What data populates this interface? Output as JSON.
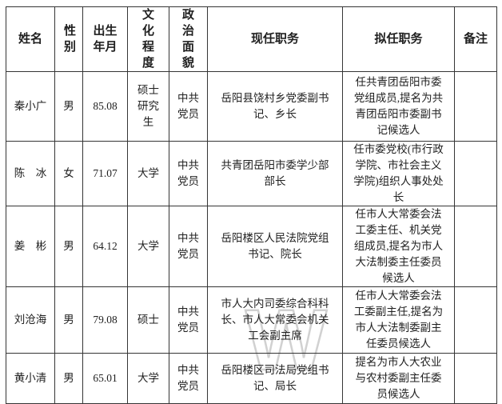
{
  "page": {
    "background": "#ffffff",
    "text_color": "#1f1f1f",
    "grid_color": "#353535",
    "watermark": {
      "glyph": "W",
      "color": "#c9c9c9"
    }
  },
  "table": {
    "headers": [
      {
        "key": "name",
        "label": "姓名"
      },
      {
        "key": "gender",
        "label": "性别"
      },
      {
        "key": "birth",
        "label": "出生年月"
      },
      {
        "key": "education",
        "label": "文化程度"
      },
      {
        "key": "political",
        "label": "政治面貌"
      },
      {
        "key": "current",
        "label": "现任职务"
      },
      {
        "key": "proposed",
        "label": "拟任职务"
      },
      {
        "key": "remarks",
        "label": "备注"
      }
    ],
    "rows": [
      {
        "name": "秦小广",
        "gender": "男",
        "birth": "85.08",
        "education": "硕士研究生",
        "political": "中共党员",
        "current": "岳阳县饶村乡党委副书记、乡长",
        "proposed": "任共青团岳阳市委党组成员,提名为共青团岳阳市委副书记候选人",
        "remarks": ""
      },
      {
        "name": "陈　冰",
        "gender": "女",
        "birth": "71.07",
        "education": "大学",
        "political": "中共党员",
        "current": "共青团岳阳市委学少部部长",
        "proposed": "任市委党校(市行政学院、市社会主义学院)组织人事处处长",
        "remarks": ""
      },
      {
        "name": "姜　彬",
        "gender": "男",
        "birth": "64.12",
        "education": "大学",
        "political": "中共党员",
        "current": "岳阳楼区人民法院党组书记、院长",
        "proposed": "任市人大常委会法工委主任、机关党组成员,提名为市人大法制委主任委员候选人",
        "remarks": ""
      },
      {
        "name": "刘沧海",
        "gender": "男",
        "birth": "79.08",
        "education": "硕士",
        "political": "中共党员",
        "current": "市人大内司委综合科科长、市人大常委会机关工会副主席",
        "proposed": "任市人大常委会法工委副主任,提名为市人大法制委副主任委员候选人",
        "remarks": ""
      },
      {
        "name": "黄小清",
        "gender": "男",
        "birth": "65.01",
        "education": "大学",
        "political": "中共党员",
        "current": "岳阳楼区司法局党组书记、局长",
        "proposed": "提名为市人大农业与农村委副主任委员候选人",
        "remarks": ""
      }
    ]
  }
}
